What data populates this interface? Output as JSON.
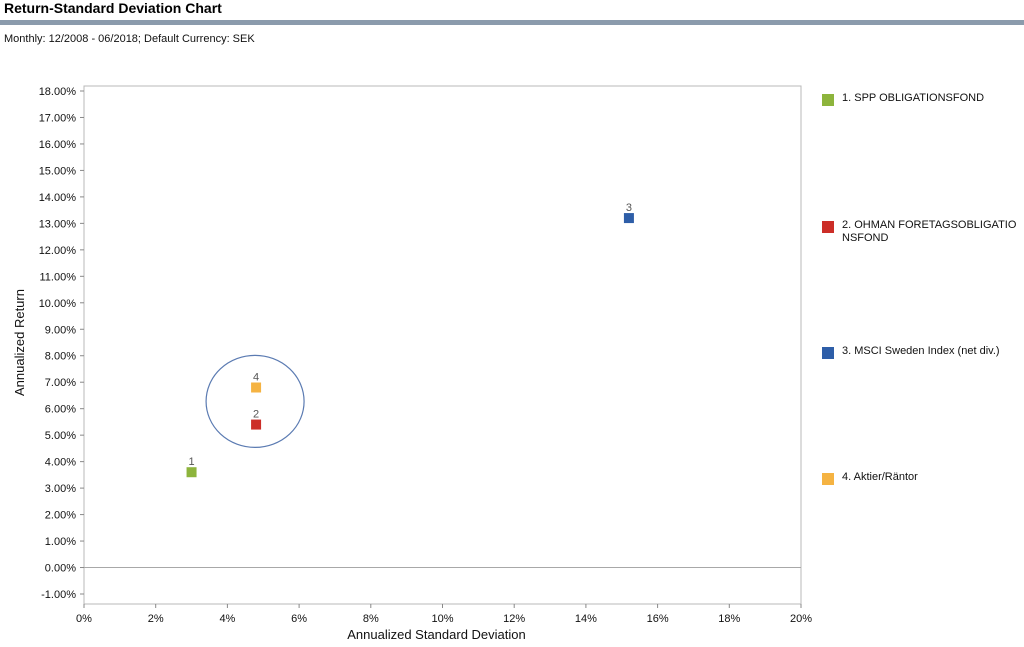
{
  "header": {
    "title": "Return-Standard Deviation Chart",
    "subtitle": "Monthly: 12/2008 - 06/2018; Default Currency: SEK"
  },
  "chart_data": {
    "type": "scatter",
    "title": "Return-Standard Deviation Chart",
    "xlabel": "Annualized Standard Deviation",
    "ylabel": "Annualized Return",
    "xlim": [
      0,
      20
    ],
    "ylim": [
      -1,
      18
    ],
    "x_ticks": [
      "0%",
      "2%",
      "4%",
      "6%",
      "8%",
      "10%",
      "12%",
      "14%",
      "16%",
      "18%",
      "20%"
    ],
    "y_ticks": [
      "-1.00%",
      "0.00%",
      "1.00%",
      "2.00%",
      "3.00%",
      "4.00%",
      "5.00%",
      "6.00%",
      "7.00%",
      "8.00%",
      "9.00%",
      "10.00%",
      "11.00%",
      "12.00%",
      "13.00%",
      "14.00%",
      "15.00%",
      "16.00%",
      "17.00%",
      "18.00%"
    ],
    "grid": false,
    "legend_position": "right",
    "series": [
      {
        "name": "1. SPP OBLIGATIONSFOND",
        "label": "1",
        "x": 3.0,
        "y": 3.6,
        "color": "#8db43c"
      },
      {
        "name": "2. OHMAN FORETAGSOBLIGATIONSFOND",
        "label": "2",
        "x": 4.8,
        "y": 5.4,
        "color": "#cc2e28"
      },
      {
        "name": "3. MSCI Sweden Index (net div.)",
        "label": "3",
        "x": 15.2,
        "y": 13.2,
        "color": "#2e5ea8"
      },
      {
        "name": "4. Aktier/Räntor",
        "label": "4",
        "x": 4.8,
        "y": 6.8,
        "color": "#f5b342"
      }
    ],
    "annotations": [
      {
        "type": "circle",
        "center_x": 4.8,
        "center_y": 6.2,
        "stroke": "#5b7bb2"
      }
    ]
  }
}
